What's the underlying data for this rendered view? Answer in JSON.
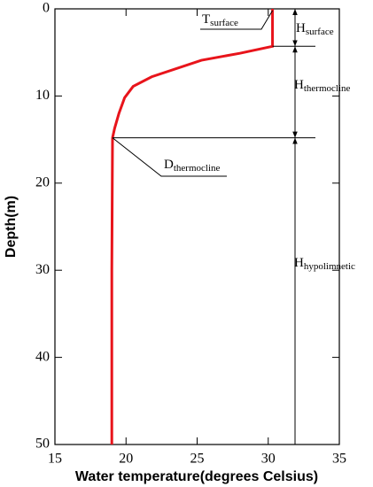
{
  "chart_data": {
    "type": "line",
    "x_label": "Water temperature(degrees Celsius)",
    "y_label": "Depth(m)",
    "x": [
      30.3,
      30.3,
      28,
      25.3,
      21.8,
      20.5,
      19.9,
      19.5,
      19.2,
      19.05,
      19.0,
      19.0
    ],
    "values": [
      0,
      4.3,
      5.1,
      5.9,
      7.8,
      8.9,
      10.2,
      12,
      13.7,
      14.8,
      30,
      50
    ],
    "color": "#e8141b",
    "xlim": [
      15,
      35
    ],
    "xticks": [
      15,
      20,
      25,
      30,
      35
    ],
    "ylim": [
      0,
      50
    ],
    "yticks": [
      0,
      10,
      20,
      30,
      40,
      50
    ],
    "y_inverted": true,
    "annotations": [
      {
        "text": "T",
        "subscript": "surface"
      },
      {
        "text": "H",
        "subscript": "surface"
      },
      {
        "text": "H",
        "subscript": "thermocline"
      },
      {
        "text": "D",
        "subscript": "thermocline"
      },
      {
        "text": "H",
        "subscript": "hypolimnetic"
      }
    ]
  }
}
